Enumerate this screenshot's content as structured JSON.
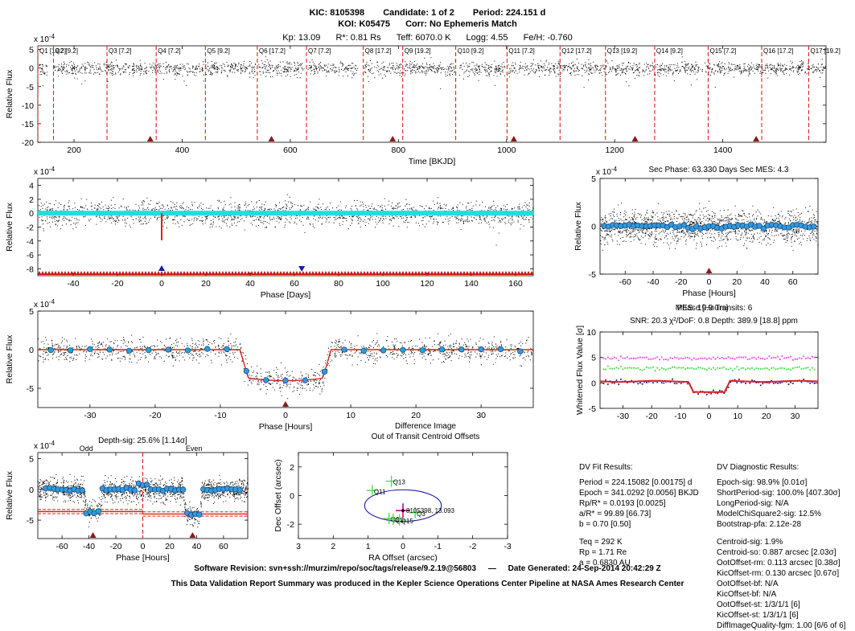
{
  "header": {
    "kic": "KIC: 8105398",
    "candidate": "Candidate: 1 of 2",
    "period": "Period: 224.151 d",
    "koi": "KOI: K05475",
    "corr": "Corr: No Ephemeris Match",
    "kp": "Kp: 13.09",
    "rstar": "R*: 0.81 Rs",
    "teff": "Teff: 6070.0 K",
    "logg": "Logg: 4.55",
    "feh": "Fe/H: -0.760"
  },
  "colors": {
    "fit": "#e0201a",
    "binned": "#3399dd",
    "cyan": "#22dddd",
    "magenta": "#ee44ee",
    "green": "#44dd44",
    "navy": "#1a1aaa",
    "marker": "#8b1a1a"
  },
  "chart_data": [
    {
      "id": "timeseries",
      "type": "scatter",
      "xlabel": "Time [BKJD]",
      "ylabel": "Relative Flux",
      "exponent": "x 10",
      "exponent_power": "-4",
      "xlim": [
        133,
        1591
      ],
      "ylim": [
        -20,
        6
      ],
      "xticks": [
        200,
        400,
        600,
        800,
        1000,
        1200,
        1400
      ],
      "yticks": [
        5,
        0,
        -5,
        -10,
        -15,
        -20
      ],
      "quarter_boundaries": [
        {
          "label": "Q1 [19.2]",
          "x": 133
        },
        {
          "label": "Q2 [9.2]",
          "x": 162
        },
        {
          "label": "Q3 [7.2]",
          "x": 261
        },
        {
          "label": "Q4 [7.2]",
          "x": 352
        },
        {
          "label": "Q5 [9.2]",
          "x": 443
        },
        {
          "label": "Q6 [17.2]",
          "x": 539
        },
        {
          "label": "Q7 [7.2]",
          "x": 630
        },
        {
          "label": "Q8 [17.2]",
          "x": 735
        },
        {
          "label": "Q9 [19.2]",
          "x": 808
        },
        {
          "label": "Q10 [9.2]",
          "x": 906
        },
        {
          "label": "Q11 [7.2]",
          "x": 1001
        },
        {
          "label": "Q12 [17.2]",
          "x": 1099
        },
        {
          "label": "Q13 [19.2]",
          "x": 1183
        },
        {
          "label": "Q14 [9.2]",
          "x": 1274
        },
        {
          "label": "Q15 [7.2]",
          "x": 1373
        },
        {
          "label": "Q16 [17.2]",
          "x": 1472
        },
        {
          "label": "Q17 [19.2]",
          "x": 1559
        }
      ],
      "transit_markers": [
        341.0,
        565.2,
        789.4,
        1013.5,
        1237.7,
        1461.8
      ]
    },
    {
      "id": "phase_days",
      "type": "scatter",
      "xlabel": "Phase [Days]",
      "ylabel": "Relative Flux",
      "exponent": "x 10",
      "exponent_power": "-4",
      "xlim": [
        -56,
        168
      ],
      "ylim": [
        -9,
        5
      ],
      "xticks": [
        -40,
        -20,
        0,
        20,
        40,
        60,
        80,
        100,
        120,
        140,
        160
      ],
      "yticks": [
        4,
        2,
        0,
        -2,
        -4,
        -6,
        -8
      ],
      "primary_marker": 0,
      "secondary_marker": 63.33
    },
    {
      "id": "secondary",
      "type": "scatter",
      "title": "Sec Phase: 63.330 Days   Sec MES: 4.3",
      "xlabel": "Phase [Hours]",
      "ylabel": "Relative Flux",
      "exponent": "x 10",
      "exponent_power": "-4",
      "xlim": [
        -78,
        78
      ],
      "ylim": [
        -5,
        5
      ],
      "xticks": [
        -60,
        -40,
        -20,
        0,
        20,
        40,
        60
      ],
      "yticks": [
        5,
        0,
        -5
      ],
      "marker": 0
    },
    {
      "id": "phase_hours",
      "type": "scatter",
      "xlabel": "Phase [Hours]",
      "ylabel": "Relative Flux",
      "exponent": "x 10",
      "exponent_power": "-4",
      "xlim": [
        -38,
        38
      ],
      "ylim": [
        -7.5,
        5
      ],
      "xticks": [
        -30,
        -20,
        -10,
        0,
        10,
        20,
        30
      ],
      "yticks": [
        5,
        0,
        -5
      ],
      "transit_depth": 3.9,
      "transit_half_duration": 7,
      "marker": 0
    },
    {
      "id": "whitened",
      "type": "scatter",
      "title": "SNR: 20.3   χ²/DoF: 0.8   Depth: 389.9 [18.8] ppm",
      "overlap_title": "MES: 19.9   Transits: 6",
      "overlap_title2": "Phase [Hours]",
      "xlabel": "",
      "ylabel": "Whitened Flux Value [σ]",
      "xlim": [
        -38,
        38
      ],
      "ylim": [
        -5,
        10
      ],
      "xticks": [
        -30,
        -20,
        -10,
        0,
        10,
        20,
        30
      ],
      "yticks": [
        10,
        5,
        0,
        -5
      ]
    },
    {
      "id": "oddeven",
      "type": "scatter",
      "title": "Depth-sig: 25.6% [1.14σ]",
      "odd_label": "Odd",
      "even_label": "Even",
      "xlabel": "Phase [Hours]",
      "ylabel": "Relative Flux",
      "exponent": "x 10",
      "exponent_power": "-4",
      "xlim": [
        -78,
        78
      ],
      "ylim": [
        -8,
        6
      ],
      "xticks": [
        -60,
        -40,
        -20,
        0,
        20,
        40,
        60
      ],
      "yticks": [
        5,
        0,
        -5
      ],
      "odd_depth": 3.6,
      "even_depth": 4.0,
      "markers": [
        -37,
        37
      ]
    },
    {
      "id": "centroid",
      "type": "scatter",
      "title": "Difference Image",
      "subtitle": "Out of Transit Centroid Offsets",
      "xlabel": "RA Offset (arcsec)",
      "ylabel": "Dec Offset (arcsec)",
      "xlim": [
        3,
        -3
      ],
      "ylim": [
        -3,
        3
      ],
      "xticks": [
        3,
        2,
        1,
        0,
        -1,
        -2,
        -3
      ],
      "yticks": [
        2,
        0,
        -2
      ],
      "circle_radius": 1.1,
      "target_label": "8105398, 13.093",
      "quarters": [
        {
          "label": "Q13",
          "x": 0.33,
          "y": 1.0
        },
        {
          "label": "Q11",
          "x": 0.88,
          "y": 0.35
        },
        {
          "label": "Q3",
          "x": -0.35,
          "y": -1.2
        },
        {
          "label": "Q6",
          "x": 0.4,
          "y": -1.6
        },
        {
          "label": "Q5",
          "x": 0.28,
          "y": -1.65
        },
        {
          "label": "Q15",
          "x": 0.1,
          "y": -1.7
        }
      ],
      "target": {
        "x": 0.0,
        "y": -1.05
      }
    }
  ],
  "fit_results": {
    "title": "DV Fit Results:",
    "lines1": [
      "Period = 224.15082 [0.00175] d",
      "Epoch = 341.0292 [0.0056] BKJD",
      "Rp/R* = 0.0193 [0.0025]",
      "a/R* = 99.89 [66.73]",
      "b = 0.70 [0.50]"
    ],
    "lines2": [
      "Teq = 292 K",
      "Rp = 1.71 Re",
      "a = 0.6830 AU"
    ]
  },
  "diagnostics": {
    "title": "DV Diagnostic Results:",
    "lines1": [
      "Epoch-sig: 98.9% [0.01σ]",
      "ShortPeriod-sig: 100.0% [407.30σ]",
      "LongPeriod-sig: N/A",
      "ModelChiSquare2-sig: 12.5%",
      "Bootstrap-pfa: 2.12e-28"
    ],
    "lines2": [
      "Centroid-sig: 1.9%",
      "Centroid-so: 0.887 arcsec [2.03σ]",
      "OotOffset-rm: 0.113 arcsec [0.38σ]",
      "KicOffset-rm: 0.130 arcsec [0.67σ]",
      "OotOffset-bf: N/A",
      "KicOffset-bf: N/A",
      "OotOffset-st: 1/3/1/1 [6]",
      "KicOffset-st: 1/3/1/1 [6]",
      "DiffImageQuality-fgm: 1.00 [6/6 of 6]"
    ]
  },
  "footer": {
    "revision": "Software Revision: svn+ssh://murzim/repo/soc/tags/release/9.2.19@56803",
    "dash": "—",
    "date": "Date Generated: 24-Sep-2014 20:42:29 Z",
    "line2": "This Data Validation Report Summary was produced in the Kepler Science Operations Center Pipeline at NASA Ames Research Center"
  }
}
